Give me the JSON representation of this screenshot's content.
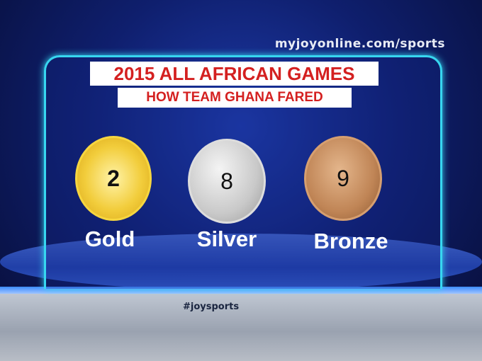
{
  "watermark_url": "myjoyonline.com/sports",
  "title": "2015 ALL AFRICAN GAMES",
  "subtitle": "HOW TEAM GHANA FARED",
  "medals": [
    {
      "label": "Gold",
      "count": "2",
      "color": "#f2cd3c"
    },
    {
      "label": "Silver",
      "count": "8",
      "color": "#c9c9c9"
    },
    {
      "label": "Bronze",
      "count": "9",
      "color": "#c08556"
    }
  ],
  "hashtag": "#joysports"
}
